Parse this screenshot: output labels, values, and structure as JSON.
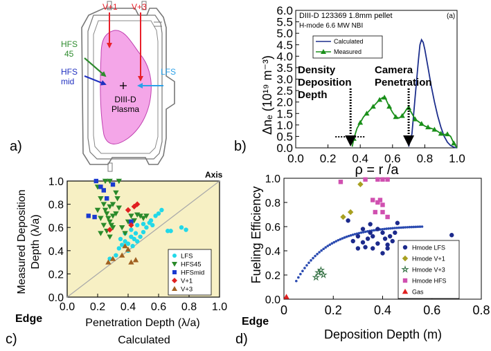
{
  "panels": {
    "a": {
      "label": "a)",
      "ports": {
        "v1": "V+1",
        "v3": "V+3",
        "hfs45_l1": "HFS",
        "hfs45_l2": "45",
        "hfsmid_l1": "HFS",
        "hfsmid_l2": "mid",
        "lfs": "LFS"
      },
      "plasma_l1": "DIII-D",
      "plasma_l2": "Plasma",
      "colors": {
        "plasma": "#f4a6e8",
        "v_arrows": "#e8202a",
        "hfs45": "#2e8b2e",
        "hfsmid": "#2030c0",
        "lfs": "#2aa0e8"
      }
    },
    "b": {
      "label": "b)",
      "header_l1": "DIII-D  123369  1.8mm  pellet",
      "header_l2": "H-mode  6.6 MW NBI",
      "panel_tag": "(a)",
      "annotations": [
        "Density",
        "Deposition",
        "Depth",
        "Camera",
        "Penetration"
      ],
      "ylabel": "Δnₑ (10¹⁹ m⁻³)",
      "xlabel": "ρ = r /a"
    },
    "c": {
      "label": "c)",
      "ylabel_l1": "Measured Deposition",
      "ylabel_l2": "Depth (λ/a)",
      "xlabel": "Penetration Depth (λ/a)",
      "xlabel2": "Calculated",
      "edge": "Edge",
      "axis": "Axis"
    },
    "d": {
      "label": "d)",
      "ylabel": "Fueling Efficiency",
      "xlabel": "Deposition Depth (m)",
      "edge": "Edge"
    }
  },
  "chart_data": [
    {
      "id": "b",
      "type": "line",
      "xlim": [
        0,
        1.0
      ],
      "ylim": [
        0,
        6.0
      ],
      "xticks": [
        "0.0",
        "0.2",
        "0.4",
        "0.6",
        "0.8",
        "1.0"
      ],
      "yticks": [
        "0.0",
        "0.5",
        "1.0",
        "1.5",
        "2.0",
        "2.5",
        "3.0",
        "3.5",
        "4.0",
        "4.5",
        "5.0",
        "5.5",
        "6.0"
      ],
      "legend_position": "top-left",
      "series": [
        {
          "name": "Calculated",
          "color": "#1c2e8c",
          "x": [
            0.7,
            0.72,
            0.74,
            0.76,
            0.77,
            0.78,
            0.79,
            0.8,
            0.82,
            0.84,
            0.86,
            0.88,
            0.9,
            0.92,
            0.94,
            0.96,
            0.98,
            1.0
          ],
          "y": [
            0.05,
            0.6,
            2.2,
            3.8,
            4.5,
            4.72,
            4.6,
            4.3,
            3.5,
            2.7,
            2.0,
            1.4,
            0.9,
            0.5,
            0.25,
            0.1,
            0.03,
            0.0
          ]
        },
        {
          "name": "Measured",
          "color": "#1a8f1a",
          "x": [
            0.35,
            0.36,
            0.38,
            0.4,
            0.42,
            0.44,
            0.46,
            0.48,
            0.5,
            0.52,
            0.54,
            0.55,
            0.56,
            0.58,
            0.6,
            0.62,
            0.64,
            0.66,
            0.68,
            0.69,
            0.7,
            0.72,
            0.74,
            0.76,
            0.78,
            0.8,
            0.82,
            0.84,
            0.86,
            0.88,
            0.9,
            0.92,
            0.94,
            0.96,
            0.98,
            1.0
          ],
          "y": [
            0.05,
            0.4,
            0.85,
            1.1,
            1.35,
            1.5,
            1.65,
            1.8,
            1.95,
            2.1,
            2.2,
            2.2,
            2.1,
            1.8,
            1.55,
            1.35,
            1.3,
            1.4,
            1.6,
            1.72,
            1.75,
            1.5,
            1.25,
            1.15,
            1.05,
            0.95,
            0.9,
            0.85,
            0.8,
            0.72,
            0.62,
            0.58,
            0.6,
            0.5,
            0.2,
            0.0
          ]
        }
      ],
      "markers_x": [
        0.36,
        0.4,
        0.44,
        0.48,
        0.52,
        0.55,
        0.58,
        0.62,
        0.66,
        0.7,
        0.74,
        0.78,
        0.82,
        0.86,
        0.9,
        0.94,
        0.98
      ],
      "deposition_depth_x": 0.34,
      "camera_penetration_x": 0.7
    },
    {
      "id": "c",
      "type": "scatter",
      "xlim": [
        0,
        1.0
      ],
      "ylim": [
        0,
        1.0
      ],
      "xticks": [
        "0.0",
        "0.2",
        "0.4",
        "0.6",
        "0.8",
        "1.0"
      ],
      "yticks": [
        "0.0",
        "0.2",
        "0.4",
        "0.6",
        "0.8",
        "1.0"
      ],
      "legend_position": "bottom-right",
      "series": [
        {
          "name": "LFS",
          "marker": "circle",
          "color": "#22d8e8",
          "points": [
            [
              0.28,
              0.33
            ],
            [
              0.32,
              0.36
            ],
            [
              0.34,
              0.42
            ],
            [
              0.36,
              0.45
            ],
            [
              0.38,
              0.48
            ],
            [
              0.4,
              0.4
            ],
            [
              0.4,
              0.46
            ],
            [
              0.42,
              0.52
            ],
            [
              0.43,
              0.44
            ],
            [
              0.44,
              0.5
            ],
            [
              0.45,
              0.55
            ],
            [
              0.46,
              0.48
            ],
            [
              0.48,
              0.52
            ],
            [
              0.5,
              0.56
            ],
            [
              0.52,
              0.6
            ],
            [
              0.54,
              0.64
            ],
            [
              0.56,
              0.62
            ],
            [
              0.58,
              0.7
            ],
            [
              0.6,
              0.72
            ],
            [
              0.62,
              0.75
            ],
            [
              0.66,
              0.57
            ],
            [
              0.68,
              0.57
            ],
            [
              0.75,
              0.6
            ],
            [
              0.78,
              0.58
            ],
            [
              0.35,
              0.5
            ],
            [
              0.38,
              0.55
            ],
            [
              0.42,
              0.58
            ],
            [
              0.46,
              0.62
            ],
            [
              0.5,
              0.63
            ],
            [
              0.55,
              0.66
            ]
          ]
        },
        {
          "name": "HFS45",
          "marker": "triangle-down",
          "color": "#2a8a2a",
          "points": [
            [
              0.2,
              0.95
            ],
            [
              0.22,
              0.85
            ],
            [
              0.24,
              0.8
            ],
            [
              0.25,
              0.75
            ],
            [
              0.26,
              0.72
            ],
            [
              0.27,
              0.68
            ],
            [
              0.28,
              0.65
            ],
            [
              0.29,
              0.62
            ],
            [
              0.3,
              0.7
            ],
            [
              0.3,
              0.8
            ],
            [
              0.32,
              0.9
            ],
            [
              0.33,
              0.85
            ],
            [
              0.34,
              0.77
            ],
            [
              0.22,
              0.68
            ],
            [
              0.24,
              0.62
            ],
            [
              0.26,
              0.57
            ],
            [
              0.28,
              0.52
            ],
            [
              0.3,
              0.6
            ],
            [
              0.2,
              0.75
            ],
            [
              0.22,
              0.55
            ],
            [
              0.28,
              0.78
            ],
            [
              0.32,
              0.72
            ],
            [
              0.36,
              0.6
            ],
            [
              0.38,
              0.55
            ],
            [
              0.4,
              0.65
            ],
            [
              0.42,
              0.7
            ],
            [
              0.44,
              0.66
            ],
            [
              0.46,
              0.71
            ],
            [
              0.48,
              0.7
            ],
            [
              0.5,
              0.68
            ],
            [
              0.52,
              0.7
            ],
            [
              0.25,
              1.0
            ],
            [
              0.28,
              1.0
            ],
            [
              0.34,
              1.0
            ]
          ]
        },
        {
          "name": "HFSmid",
          "marker": "square",
          "color": "#1a3ad0",
          "points": [
            [
              0.14,
              0.7
            ],
            [
              0.18,
              0.69
            ],
            [
              0.19,
              1.0
            ],
            [
              0.22,
              0.95
            ],
            [
              0.24,
              0.92
            ],
            [
              0.26,
              0.85
            ],
            [
              0.3,
              0.97
            ],
            [
              0.42,
              0.65
            ]
          ]
        },
        {
          "name": "V+1",
          "marker": "diamond",
          "color": "#e02020",
          "points": [
            [
              0.28,
              0.58
            ],
            [
              0.4,
              0.75
            ],
            [
              0.44,
              0.78
            ],
            [
              0.46,
              0.8
            ],
            [
              0.42,
              0.62
            ]
          ]
        },
        {
          "name": "V+3",
          "marker": "triangle-up",
          "color": "#a06020",
          "points": [
            [
              0.27,
              0.3
            ],
            [
              0.3,
              0.33
            ],
            [
              0.36,
              0.36
            ],
            [
              0.38,
              0.44
            ],
            [
              0.4,
              0.41
            ],
            [
              0.42,
              0.3
            ],
            [
              0.45,
              0.32
            ]
          ]
        }
      ],
      "diagonal": [
        [
          0,
          0
        ],
        [
          1.0,
          1.0
        ]
      ]
    },
    {
      "id": "d",
      "type": "scatter",
      "xlim": [
        0,
        0.8
      ],
      "ylim": [
        0,
        1.0
      ],
      "xticks": [
        "0",
        "0.2",
        "0.4",
        "0.6",
        "0.8"
      ],
      "yticks": [
        "0.0",
        "0.2",
        "0.4",
        "0.6",
        "0.8",
        "1.0"
      ],
      "legend_position": "bottom-right",
      "series": [
        {
          "name": "Hmode LFS",
          "marker": "circle",
          "color": "#1c2a8c",
          "points": [
            [
              0.26,
              0.65
            ],
            [
              0.28,
              0.48
            ],
            [
              0.3,
              0.42
            ],
            [
              0.32,
              0.47
            ],
            [
              0.34,
              0.5
            ],
            [
              0.35,
              0.55
            ],
            [
              0.36,
              0.52
            ],
            [
              0.38,
              0.58
            ],
            [
              0.4,
              0.55
            ],
            [
              0.41,
              0.5
            ],
            [
              0.42,
              0.45
            ],
            [
              0.43,
              0.52
            ],
            [
              0.45,
              0.55
            ],
            [
              0.38,
              0.46
            ],
            [
              0.36,
              0.42
            ],
            [
              0.44,
              0.48
            ],
            [
              0.46,
              0.63
            ],
            [
              0.35,
              0.62
            ],
            [
              0.32,
              0.58
            ],
            [
              0.3,
              0.52
            ],
            [
              0.68,
              0.53
            ],
            [
              0.42,
              0.42
            ],
            [
              0.4,
              0.38
            ],
            [
              0.33,
              0.43
            ]
          ]
        },
        {
          "name": "Hmode V+1",
          "marker": "diamond",
          "color": "#a8a020",
          "points": [
            [
              0.24,
              0.68
            ],
            [
              0.27,
              0.72
            ],
            [
              0.31,
              0.95
            ]
          ]
        },
        {
          "name": "Hmode V+3",
          "marker": "star",
          "color": "#2a6a3a",
          "points": [
            [
              0.13,
              0.18
            ],
            [
              0.14,
              0.22
            ],
            [
              0.15,
              0.24
            ],
            [
              0.16,
              0.2
            ]
          ]
        },
        {
          "name": "Hmode HFS",
          "marker": "square",
          "color": "#d050b0",
          "points": [
            [
              0.23,
              0.97
            ],
            [
              0.33,
              0.99
            ],
            [
              0.38,
              0.99
            ],
            [
              0.4,
              0.99
            ],
            [
              0.42,
              0.99
            ],
            [
              0.36,
              0.82
            ],
            [
              0.38,
              0.8
            ],
            [
              0.4,
              0.78
            ],
            [
              0.37,
              0.72
            ],
            [
              0.4,
              0.72
            ],
            [
              0.42,
              0.68
            ],
            [
              0.39,
              0.82
            ]
          ]
        },
        {
          "name": "Gas",
          "marker": "triangle-up",
          "color": "#e02020",
          "points": [
            [
              0.01,
              0.02
            ]
          ]
        }
      ],
      "model_curve": {
        "x0": 0.05,
        "x1": 0.56,
        "y_start": 0.15,
        "y_end": 0.6
      }
    }
  ]
}
